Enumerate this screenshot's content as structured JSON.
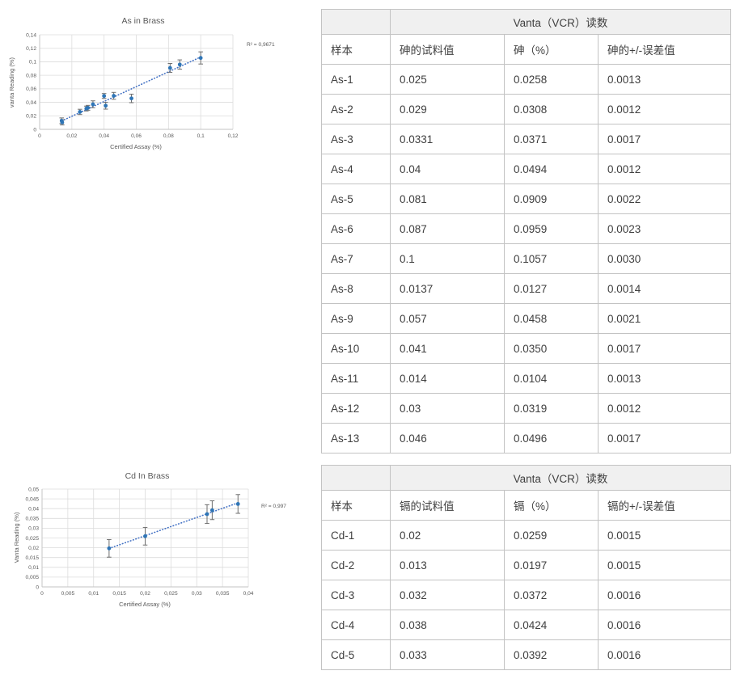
{
  "chart_data": [
    {
      "type": "scatter",
      "title": "As in Brass",
      "xlabel": "Certified Assay (%)",
      "ylabel": "vanta Reading (%)",
      "r_squared_label": "R² = 0,9671",
      "xlim": [
        0,
        0.12
      ],
      "ylim": [
        0,
        0.14
      ],
      "x_tick_labels": [
        "0",
        "0,02",
        "0,04",
        "0,06",
        "0,08",
        "0,1",
        "0,12"
      ],
      "y_tick_labels": [
        "0",
        "0,02",
        "0,04",
        "0,06",
        "0,08",
        "0,1",
        "0,12",
        "0,14"
      ],
      "grid": true,
      "legend": "none",
      "trendline": "linear-dotted",
      "error_bar_multiplier": 3,
      "marker_color": "#2e75b6",
      "trendline_color": "#4472c4",
      "error_bar_color": "#6e6e6e",
      "points": [
        {
          "x": 0.025,
          "y": 0.0258,
          "err": 0.0013
        },
        {
          "x": 0.029,
          "y": 0.0308,
          "err": 0.0012
        },
        {
          "x": 0.0331,
          "y": 0.0371,
          "err": 0.0017
        },
        {
          "x": 0.04,
          "y": 0.0494,
          "err": 0.0012
        },
        {
          "x": 0.081,
          "y": 0.0909,
          "err": 0.0022
        },
        {
          "x": 0.087,
          "y": 0.0959,
          "err": 0.0023
        },
        {
          "x": 0.1,
          "y": 0.1057,
          "err": 0.003
        },
        {
          "x": 0.0137,
          "y": 0.0127,
          "err": 0.0014
        },
        {
          "x": 0.057,
          "y": 0.0458,
          "err": 0.0021
        },
        {
          "x": 0.041,
          "y": 0.035,
          "err": 0.0017
        },
        {
          "x": 0.014,
          "y": 0.0104,
          "err": 0.0013
        },
        {
          "x": 0.03,
          "y": 0.0319,
          "err": 0.0012
        },
        {
          "x": 0.046,
          "y": 0.0496,
          "err": 0.0017
        }
      ]
    },
    {
      "type": "scatter",
      "title": "Cd In Brass",
      "xlabel": "Certified Assay (%)",
      "ylabel": "Vanta Reading (%)",
      "r_squared_label": "R² = 0,997",
      "xlim": [
        0,
        0.04
      ],
      "ylim": [
        0,
        0.05
      ],
      "x_tick_labels": [
        "0",
        "0,005",
        "0,01",
        "0,015",
        "0,02",
        "0,025",
        "0,03",
        "0,035",
        "0,04"
      ],
      "y_tick_labels": [
        "0",
        "0,005",
        "0,01",
        "0,015",
        "0,02",
        "0,025",
        "0,03",
        "0,035",
        "0,04",
        "0,045",
        "0,05"
      ],
      "grid": true,
      "legend": "none",
      "trendline": "linear-dotted",
      "error_bar_multiplier": 3,
      "marker_color": "#2e75b6",
      "trendline_color": "#4472c4",
      "error_bar_color": "#6e6e6e",
      "points": [
        {
          "x": 0.02,
          "y": 0.0259,
          "err": 0.0015
        },
        {
          "x": 0.013,
          "y": 0.0197,
          "err": 0.0015
        },
        {
          "x": 0.032,
          "y": 0.0372,
          "err": 0.0016
        },
        {
          "x": 0.038,
          "y": 0.0424,
          "err": 0.0016
        },
        {
          "x": 0.033,
          "y": 0.0392,
          "err": 0.0016
        }
      ]
    }
  ],
  "tables": [
    {
      "group_header": "Vanta（VCR）读数",
      "columns": [
        "样本",
        "砷的试料值",
        "砷（%）",
        "砷的+/-误差值"
      ],
      "rows": [
        [
          "As-1",
          "0.025",
          "0.0258",
          "0.0013"
        ],
        [
          "As-2",
          "0.029",
          "0.0308",
          "0.0012"
        ],
        [
          "As-3",
          "0.0331",
          "0.0371",
          "0.0017"
        ],
        [
          "As-4",
          "0.04",
          "0.0494",
          "0.0012"
        ],
        [
          "As-5",
          "0.081",
          "0.0909",
          "0.0022"
        ],
        [
          "As-6",
          "0.087",
          "0.0959",
          "0.0023"
        ],
        [
          "As-7",
          "0.1",
          "0.1057",
          "0.0030"
        ],
        [
          "As-8",
          "0.0137",
          "0.0127",
          "0.0014"
        ],
        [
          "As-9",
          "0.057",
          "0.0458",
          "0.0021"
        ],
        [
          "As-10",
          "0.041",
          "0.0350",
          "0.0017"
        ],
        [
          "As-11",
          "0.014",
          "0.0104",
          "0.0013"
        ],
        [
          "As-12",
          "0.03",
          "0.0319",
          "0.0012"
        ],
        [
          "As-13",
          "0.046",
          "0.0496",
          "0.0017"
        ]
      ]
    },
    {
      "group_header": "Vanta（VCR）读数",
      "columns": [
        "样本",
        "镉的试料值",
        "镉（%）",
        "镉的+/-误差值"
      ],
      "rows": [
        [
          "Cd-1",
          "0.02",
          "0.0259",
          "0.0015"
        ],
        [
          "Cd-2",
          "0.013",
          "0.0197",
          "0.0015"
        ],
        [
          "Cd-3",
          "0.032",
          "0.0372",
          "0.0016"
        ],
        [
          "Cd-4",
          "0.038",
          "0.0424",
          "0.0016"
        ],
        [
          "Cd-5",
          "0.033",
          "0.0392",
          "0.0016"
        ]
      ]
    }
  ]
}
